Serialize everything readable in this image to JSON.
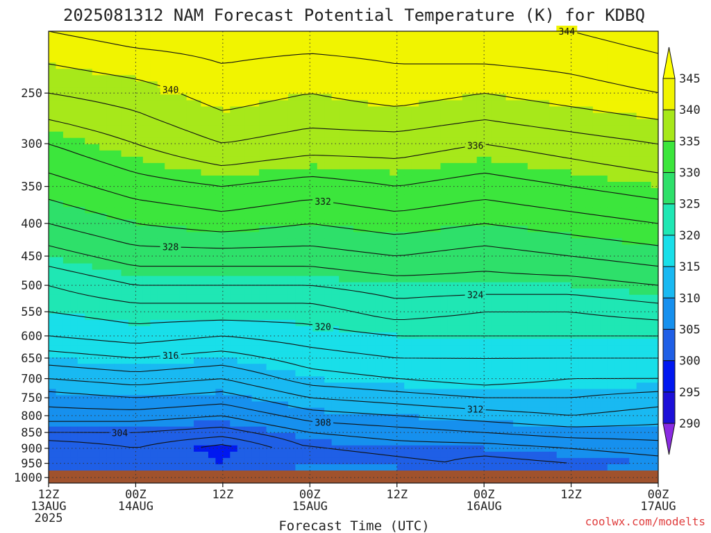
{
  "chart_data": {
    "type": "heatmap",
    "title": "2025081312 NAM Forecast Potential Temperature (K) for KDBQ",
    "xlabel": "Forecast Time (UTC)",
    "ylabel": "",
    "credit": "coolwx.com/modelts",
    "x_ticks": [
      {
        "hour": 0,
        "line1": "12Z",
        "line2": "13AUG",
        "line3": "2025"
      },
      {
        "hour": 12,
        "line1": "00Z",
        "line2": "14AUG",
        "line3": ""
      },
      {
        "hour": 24,
        "line1": "12Z",
        "line2": "",
        "line3": ""
      },
      {
        "hour": 36,
        "line1": "00Z",
        "line2": "15AUG",
        "line3": ""
      },
      {
        "hour": 48,
        "line1": "12Z",
        "line2": "",
        "line3": ""
      },
      {
        "hour": 60,
        "line1": "00Z",
        "line2": "16AUG",
        "line3": ""
      },
      {
        "hour": 72,
        "line1": "12Z",
        "line2": "",
        "line3": ""
      },
      {
        "hour": 84,
        "line1": "00Z",
        "line2": "17AUG",
        "line3": ""
      }
    ],
    "xlim": [
      0,
      84
    ],
    "y_ticks": [
      250,
      300,
      350,
      400,
      450,
      500,
      550,
      600,
      650,
      700,
      750,
      800,
      850,
      900,
      950,
      1000
    ],
    "ylim": [
      1020,
      200
    ],
    "y_scale": "log-pressure",
    "grid": true,
    "colorbar": {
      "levels": [
        290,
        295,
        300,
        305,
        310,
        315,
        320,
        325,
        330,
        335,
        340,
        345
      ],
      "colors": [
        "#8a2be2",
        "#1c10d8",
        "#0018f0",
        "#1f5fe6",
        "#1690ee",
        "#19b9f2",
        "#19dfe9",
        "#1fe7b4",
        "#2ee06a",
        "#3ce63c",
        "#a7e81a",
        "#f1f400",
        "#ffff00"
      ]
    },
    "profile_hours": [
      0,
      12,
      24,
      36,
      48,
      60,
      72,
      84
    ],
    "profiles_pressure": [
      200,
      250,
      300,
      350,
      400,
      450,
      500,
      550,
      600,
      650,
      700,
      750,
      800,
      850,
      900,
      950,
      975
    ],
    "profiles_theta": [
      [
        342,
        338,
        334,
        331,
        328,
        325,
        322,
        320,
        318,
        315,
        312,
        309,
        307,
        304,
        300,
        302,
        303
      ],
      [
        343,
        339,
        336,
        333,
        330,
        327,
        324,
        321,
        319,
        316,
        313,
        310,
        307,
        304,
        302,
        303,
        304
      ],
      [
        343,
        341,
        338,
        334,
        331,
        327,
        324,
        321,
        318,
        315,
        312,
        309,
        306,
        303,
        299,
        300,
        302
      ],
      [
        343,
        340,
        337,
        333,
        330,
        327,
        324,
        321,
        319,
        317,
        315,
        312,
        309,
        306,
        304,
        305,
        306
      ],
      [
        343,
        341,
        337,
        334,
        331,
        328,
        325,
        323,
        320,
        318,
        316,
        313,
        310,
        307,
        305,
        305,
        305
      ],
      [
        344,
        340,
        336,
        333,
        330,
        327,
        325,
        322,
        320,
        318,
        317,
        314,
        311,
        308,
        305,
        303,
        304
      ],
      [
        344,
        341,
        337,
        334,
        331,
        328,
        325,
        322,
        320,
        318,
        316,
        314,
        312,
        309,
        306,
        304,
        305
      ],
      [
        345,
        342,
        338,
        335,
        332,
        329,
        326,
        323,
        320,
        318,
        316,
        313,
        311,
        309,
        307,
        305,
        306
      ]
    ],
    "contour_interval": 2,
    "contour_labels": [
      "340",
      "344",
      "336",
      "340",
      "336",
      "336",
      "332",
      "332",
      "332",
      "328",
      "328",
      "324",
      "324",
      "324",
      "320",
      "320",
      "320",
      "316",
      "316",
      "312",
      "312",
      "312",
      "308",
      "308",
      "308",
      "304",
      "304",
      "304"
    ],
    "ground_color": "#a0522d",
    "surface_pressure": 975
  }
}
